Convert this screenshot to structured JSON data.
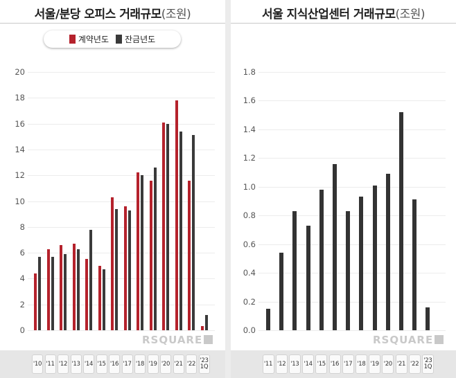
{
  "chart_data": [
    {
      "type": "bar",
      "title": "서울/분당 오피스 거래규모",
      "unit": "(조원)",
      "categories": [
        "'10",
        "'11",
        "'12",
        "'13",
        "'14",
        "'15",
        "'16",
        "'17",
        "'18",
        "'19",
        "'20",
        "'21",
        "'22",
        "'23\n1Q"
      ],
      "series": [
        {
          "name": "계약년도",
          "color": "#b5222c",
          "values": [
            4.4,
            6.3,
            6.6,
            6.7,
            5.5,
            5.0,
            10.3,
            9.6,
            12.2,
            11.6,
            16.1,
            17.8,
            11.6,
            0.3
          ]
        },
        {
          "name": "잔금년도",
          "color": "#3a3a3a",
          "values": [
            5.7,
            5.7,
            5.9,
            6.3,
            7.8,
            4.7,
            9.4,
            9.3,
            12.0,
            12.6,
            16.0,
            15.4,
            15.1,
            1.2
          ]
        }
      ],
      "ylim": [
        0,
        20
      ],
      "yticks": [
        "0",
        "2",
        "4",
        "6",
        "8",
        "10",
        "12",
        "14",
        "16",
        "18",
        "20"
      ],
      "legend": "top-center",
      "watermark": "RSQUARE"
    },
    {
      "type": "bar",
      "title": "서울 지식산업센터 거래규모",
      "unit": "(조원)",
      "categories": [
        "'11",
        "'12",
        "'13",
        "'14",
        "'15",
        "'16",
        "'17",
        "'18",
        "'19",
        "'20",
        "'21",
        "'22",
        "'23\n1Q"
      ],
      "series": [
        {
          "name": "거래규모",
          "color": "#333333",
          "values": [
            0.15,
            0.54,
            0.83,
            0.73,
            0.98,
            1.16,
            0.83,
            0.93,
            1.01,
            1.09,
            1.52,
            0.91,
            0.16
          ]
        }
      ],
      "ylim": [
        0,
        1.8
      ],
      "yticks": [
        "0.0",
        "0.2",
        "0.4",
        "0.6",
        "0.8",
        "1.0",
        "1.2",
        "1.4",
        "1.6",
        "1.8"
      ],
      "watermark": "RSQUARE"
    }
  ]
}
